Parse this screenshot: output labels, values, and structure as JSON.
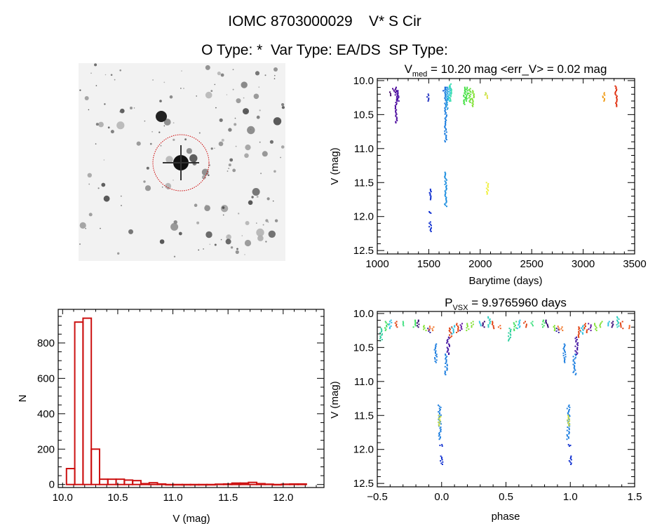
{
  "header": {
    "title": "IOMC 8703000029    V* S Cir",
    "subtitle": "O Type: *  Var Type: EA/DS  SP Type:"
  },
  "chart_data": [
    {
      "id": "image",
      "type": "image",
      "description_note": "",
      "marker_color": "#cc0000"
    },
    {
      "id": "lightcurve",
      "type": "scatter",
      "title": {
        "main": "V",
        "sub": "med",
        "rest": " = 10.20 mag <err_V> = 0.02 mag"
      },
      "xlabel": "Barytime (days)",
      "ylabel": "V (mag)",
      "xlim": [
        1000,
        3500
      ],
      "ylim": [
        12.55,
        9.97
      ],
      "y_inverted": true,
      "xticks": [
        "1000",
        "1500",
        "2000",
        "2500",
        "3000",
        "3500"
      ],
      "yticks": [
        "10.0",
        "10.5",
        "11.0",
        "11.5",
        "12.0",
        "12.5"
      ],
      "clusters": [
        {
          "t": 1130,
          "v": [
            10.17,
            10.22
          ],
          "color": "#3a0060"
        },
        {
          "t": 1160,
          "v": [
            10.12,
            10.16
          ],
          "color": "#4a0090"
        },
        {
          "t": 1185,
          "v": [
            10.1,
            10.62
          ],
          "color": "#5010a0"
        },
        {
          "t": 1200,
          "v": [
            10.15,
            10.3
          ],
          "color": "#4a10a8"
        },
        {
          "t": 1490,
          "v": [
            10.2,
            10.3
          ],
          "color": "#2030c0"
        },
        {
          "t": 1515,
          "v": [
            11.6,
            11.75
          ],
          "color": "#1030d0"
        },
        {
          "t": 1515,
          "v": [
            11.93,
            11.95
          ],
          "color": "#1030d0"
        },
        {
          "t": 1515,
          "v": [
            12.08,
            12.22
          ],
          "color": "#1030d0"
        },
        {
          "t": 1650,
          "v": [
            10.1,
            10.15
          ],
          "color": "#1050d0"
        },
        {
          "t": 1665,
          "v": [
            10.1,
            10.9
          ],
          "color": "#2080e0"
        },
        {
          "t": 1665,
          "v": [
            11.35,
            11.85
          ],
          "color": "#2090e0"
        },
        {
          "t": 1680,
          "v": [
            10.1,
            10.42
          ],
          "color": "#30a0e0"
        },
        {
          "t": 1700,
          "v": [
            10.08,
            10.3
          ],
          "color": "#30c0e0"
        },
        {
          "t": 1712,
          "v": [
            10.05,
            10.3
          ],
          "color": "#40e0b0"
        },
        {
          "t": 1850,
          "v": [
            10.1,
            10.35
          ],
          "color": "#40e040"
        },
        {
          "t": 1870,
          "v": [
            10.1,
            10.3
          ],
          "color": "#50e050"
        },
        {
          "t": 1900,
          "v": [
            10.12,
            10.32
          ],
          "color": "#60e030"
        },
        {
          "t": 1930,
          "v": [
            10.15,
            10.38
          ],
          "color": "#80e030"
        },
        {
          "t": 2050,
          "v": [
            10.18,
            10.21
          ],
          "color": "#c0e040"
        },
        {
          "t": 2075,
          "v": [
            10.22,
            10.26
          ],
          "color": "#e0e040"
        },
        {
          "t": 2070,
          "v": [
            11.5,
            11.67
          ],
          "color": "#f0f040"
        },
        {
          "t": 3200,
          "v": [
            10.18,
            10.3
          ],
          "color": "#f0a020"
        },
        {
          "t": 3320,
          "v": [
            10.08,
            10.38
          ],
          "color": "#e03010"
        }
      ]
    },
    {
      "id": "histogram",
      "type": "bar",
      "xlabel": "V (mag)",
      "ylabel": "N",
      "xlim": [
        9.96,
        12.37
      ],
      "ylim": [
        -17,
        990
      ],
      "xticks": [
        "10.0",
        "10.5",
        "11.0",
        "11.5",
        "12.0"
      ],
      "yticks": [
        "0",
        "200",
        "400",
        "600",
        "800"
      ],
      "bin_start": 10.035,
      "bin_width": 0.075,
      "values": [
        90,
        918,
        940,
        200,
        30,
        30,
        30,
        25,
        22,
        5,
        10,
        3,
        0,
        0,
        0,
        0,
        0,
        0,
        2,
        3,
        8,
        8,
        12,
        5,
        2,
        0,
        2,
        3,
        3
      ],
      "color": "#cc1111"
    },
    {
      "id": "phased",
      "type": "scatter",
      "title": {
        "main": "P",
        "sub": "VSX",
        "rest": " = 9.9765960 days"
      },
      "xlabel": "phase",
      "ylabel": "V (mag)",
      "xlim": [
        -0.5,
        1.5
      ],
      "ylim": [
        12.55,
        9.97
      ],
      "y_inverted": true,
      "xticks": [
        "-0.5",
        "0.0",
        "0.5",
        "1.0",
        "1.5"
      ],
      "yticks": [
        "10.0",
        "10.5",
        "11.0",
        "11.5",
        "12.0",
        "12.5"
      ],
      "clusters": [
        {
          "p": 0.53,
          "v": [
            10.22,
            10.4
          ],
          "color": "#30d0a0"
        },
        {
          "p": 0.57,
          "v": [
            10.12,
            10.25
          ],
          "color": "#40e060"
        },
        {
          "p": 0.6,
          "v": [
            10.1,
            10.22
          ],
          "color": "#30c0e0"
        },
        {
          "p": 0.65,
          "v": [
            10.12,
            10.2
          ],
          "color": "#e04010"
        },
        {
          "p": 0.7,
          "v": [
            10.12,
            10.18
          ],
          "color": "#40e080"
        },
        {
          "p": 0.79,
          "v": [
            10.1,
            10.2
          ],
          "color": "#40e060"
        },
        {
          "p": 0.82,
          "v": [
            10.1,
            10.2
          ],
          "color": "#300070"
        },
        {
          "p": 0.87,
          "v": [
            10.18,
            10.25
          ],
          "color": "#80e030"
        },
        {
          "p": 0.9,
          "v": [
            10.22,
            10.28
          ],
          "color": "#3020a0"
        },
        {
          "p": 0.91,
          "v": [
            10.19,
            10.24
          ],
          "color": "#f06020"
        },
        {
          "p": 0.93,
          "v": [
            10.2,
            10.25
          ],
          "color": "#f07020"
        },
        {
          "p": 0.955,
          "v": [
            10.45,
            10.72
          ],
          "color": "#2080e0"
        },
        {
          "p": 0.985,
          "v": [
            11.35,
            11.85
          ],
          "color": "#2080e0"
        },
        {
          "p": 0.985,
          "v": [
            11.5,
            11.65
          ],
          "color": "#d0e040"
        },
        {
          "p": 0.995,
          "v": [
            11.93,
            11.95
          ],
          "color": "#1030d0"
        },
        {
          "p": 1.0,
          "v": [
            12.1,
            12.22
          ],
          "color": "#1030d0"
        },
        {
          "p": 0.034,
          "v": [
            10.6,
            10.9
          ],
          "color": "#2080e0"
        },
        {
          "p": 0.05,
          "v": [
            10.35,
            10.6
          ],
          "color": "#4010a0"
        },
        {
          "p": 0.07,
          "v": [
            10.2,
            10.35
          ],
          "color": "#e04010"
        },
        {
          "p": 0.09,
          "v": [
            10.18,
            10.3
          ],
          "color": "#30c0e0"
        },
        {
          "p": 0.12,
          "v": [
            10.15,
            10.28
          ],
          "color": "#e04010"
        },
        {
          "p": 0.15,
          "v": [
            10.15,
            10.25
          ],
          "color": "#6010a0"
        },
        {
          "p": 0.2,
          "v": [
            10.15,
            10.25
          ],
          "color": "#80e030"
        },
        {
          "p": 0.24,
          "v": [
            10.12,
            10.2
          ],
          "color": "#80e030"
        },
        {
          "p": 0.3,
          "v": [
            10.12,
            10.18
          ],
          "color": "#30c0e0"
        },
        {
          "p": 0.33,
          "v": [
            10.12,
            10.2
          ],
          "color": "#300070"
        },
        {
          "p": 0.37,
          "v": [
            10.05,
            10.2
          ],
          "color": "#30d0c0"
        },
        {
          "p": 0.4,
          "v": [
            10.12,
            10.22
          ],
          "color": "#e04010"
        },
        {
          "p": 0.45,
          "v": [
            10.18,
            10.22
          ],
          "color": "#f06020"
        }
      ]
    }
  ]
}
